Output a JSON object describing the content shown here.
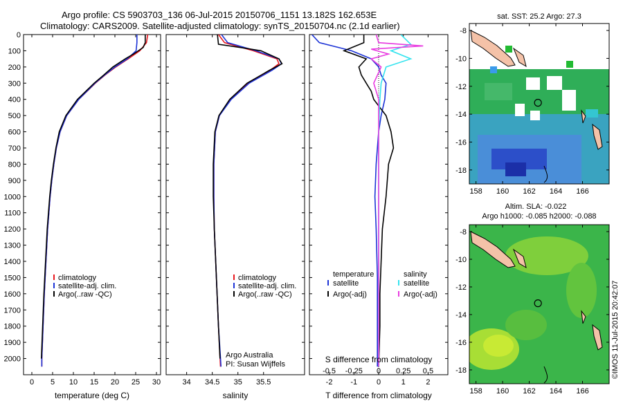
{
  "header": {
    "line1": "Argo profile: CS 5903703_136 06-Jul-2015 20150706_1151 13.182S 162.653E",
    "line2": "Climatology: CARS2009. Satellite-adjusted climatology: synTS_20150704.nc (2.1d earlier)"
  },
  "colors": {
    "climatology": "#e8161d",
    "satellite": "#1c33d6",
    "argo": "#000000",
    "sal_sat": "#33e3ee",
    "sal_argo": "#e83be0"
  },
  "panels": {
    "temperature": {
      "xlabel": "temperature (deg C)",
      "legend": [
        "climatology",
        "satellite-adj. clim.",
        "Argo(..raw -QC)"
      ]
    },
    "salinity": {
      "xlabel": "salinity",
      "legend": [
        "climatology",
        "satellite-adj. clim.",
        "Argo(..raw -QC)"
      ],
      "credit1": "Argo Australia",
      "credit2": "PI: Susan Wijffels"
    },
    "difference": {
      "xlabel": "T difference from climatology",
      "top_label": "S difference from climatology",
      "legend_head_left": "temperature",
      "legend_head_right": "salinity",
      "legend_left": [
        "satellite",
        "Argo(-adj)"
      ],
      "legend_right": [
        "satellite",
        "Argo(-adj)"
      ]
    },
    "map_sst": {
      "title": "sat. SST: 25.2  Argo: 27.3"
    },
    "map_sla": {
      "title1": "Altim. SLA: -0.022",
      "title2": "Argo h1000: -0.085 h2000: -0.088"
    }
  },
  "side_label": "©IMOS 11-Jul-2015 20:42:07",
  "chart_data": [
    {
      "type": "line",
      "id": "temperature",
      "xlabel": "temperature (deg C)",
      "xlim": [
        -2,
        31
      ],
      "ylim": [
        0,
        2100
      ],
      "xticks": [
        0,
        5,
        10,
        15,
        20,
        25,
        30
      ],
      "yticks": [
        0,
        100,
        200,
        300,
        400,
        500,
        600,
        700,
        800,
        900,
        1000,
        1100,
        1200,
        1300,
        1400,
        1500,
        1600,
        1700,
        1800,
        1900,
        2000
      ],
      "series": [
        {
          "name": "climatology",
          "depth": [
            0,
            50,
            100,
            150,
            200,
            250,
            300,
            400,
            500,
            600,
            700,
            800,
            900,
            1000,
            1200,
            1400,
            1600,
            1800,
            2000,
            2050
          ],
          "values": [
            27.9,
            27.6,
            26.0,
            23.2,
            20.2,
            17.6,
            15.3,
            11.3,
            8.4,
            6.8,
            5.9,
            5.3,
            4.8,
            4.4,
            3.8,
            3.4,
            3.0,
            2.7,
            2.4,
            2.4
          ]
        },
        {
          "name": "satellite-adj. clim.",
          "depth": [
            0,
            50,
            100,
            150,
            200,
            250,
            300,
            400,
            500,
            600,
            700,
            800,
            900,
            1000,
            1200,
            1400,
            1600,
            1800,
            2000,
            2050
          ],
          "values": [
            25.3,
            25.3,
            25.1,
            23.0,
            20.0,
            17.5,
            15.2,
            11.3,
            8.4,
            6.8,
            5.9,
            5.3,
            4.8,
            4.4,
            3.8,
            3.4,
            3.0,
            2.7,
            2.4,
            2.4
          ]
        },
        {
          "name": "Argo(..raw -QC)",
          "depth": [
            0,
            50,
            80,
            120,
            150,
            200,
            250,
            300,
            400,
            500,
            600,
            700,
            800,
            900,
            1000,
            1200,
            1400,
            1600,
            1800,
            2000
          ],
          "values": [
            27.3,
            27.3,
            26.8,
            24.5,
            22.5,
            19.5,
            17.3,
            15.0,
            11.0,
            8.2,
            6.6,
            5.8,
            5.2,
            4.7,
            4.3,
            3.7,
            3.3,
            2.9,
            2.6,
            2.3
          ]
        }
      ]
    },
    {
      "type": "line",
      "id": "salinity",
      "xlabel": "salinity",
      "xlim": [
        33.6,
        36.3
      ],
      "ylim": [
        0,
        2100
      ],
      "xticks": [
        34,
        34.5,
        35,
        35.5
      ],
      "series": [
        {
          "name": "climatology",
          "depth": [
            0,
            50,
            100,
            150,
            180,
            220,
            300,
            400,
            500,
            600,
            800,
            1000,
            1200,
            1500,
            1800,
            2050
          ],
          "values": [
            34.62,
            34.74,
            35.3,
            35.76,
            35.8,
            35.63,
            35.2,
            34.86,
            34.64,
            34.56,
            34.53,
            34.53,
            34.54,
            34.58,
            34.62,
            34.66
          ]
        },
        {
          "name": "satellite-adj. clim.",
          "depth": [
            0,
            50,
            100,
            150,
            180,
            220,
            300,
            400,
            500,
            600,
            800,
            1000,
            1200,
            1500,
            1800,
            2050
          ],
          "values": [
            34.68,
            34.8,
            35.35,
            35.8,
            35.85,
            35.67,
            35.22,
            34.87,
            34.64,
            34.56,
            34.53,
            34.53,
            34.54,
            34.58,
            34.62,
            34.67
          ]
        },
        {
          "name": "Argo(..raw -QC)",
          "depth": [
            0,
            60,
            80,
            100,
            150,
            180,
            220,
            300,
            400,
            500,
            600,
            800,
            1000,
            1200,
            1500,
            1800,
            2000
          ],
          "values": [
            34.6,
            34.62,
            35.05,
            35.45,
            35.8,
            35.86,
            35.62,
            35.18,
            34.84,
            34.63,
            34.55,
            34.52,
            34.52,
            34.54,
            34.58,
            34.62,
            34.65
          ]
        }
      ]
    },
    {
      "type": "line",
      "id": "difference",
      "xlabel": "T difference from climatology",
      "xlim": [
        -2.8,
        2.8
      ],
      "ylim": [
        0,
        2100
      ],
      "xticks": [
        -2,
        -1,
        0,
        1,
        2
      ],
      "top_xticks": [
        "-0.5",
        "-0.25",
        "0",
        "0.25",
        "0.5"
      ],
      "series": [
        {
          "name": "temperature satellite",
          "depth": [
            0,
            50,
            100,
            150,
            200,
            250,
            300,
            400,
            500,
            600,
            800,
            1000,
            1200,
            1500,
            1800,
            2050
          ],
          "values": [
            -2.7,
            -2.4,
            -1.1,
            -0.3,
            0.0,
            0.1,
            0.3,
            0.25,
            0.1,
            0.0,
            -0.1,
            -0.15,
            -0.1,
            -0.05,
            -0.05,
            -0.05
          ]
        },
        {
          "name": "temperature Argo(-adj)",
          "depth": [
            0,
            50,
            100,
            150,
            200,
            250,
            300,
            350,
            400,
            500,
            600,
            700,
            800,
            900,
            1000,
            1200,
            1400,
            1600,
            1800,
            2050
          ],
          "values": [
            -0.6,
            -0.6,
            -1.4,
            -0.5,
            -0.8,
            -0.7,
            -0.5,
            -0.3,
            -0.2,
            0.3,
            0.5,
            0.6,
            0.4,
            0.35,
            0.3,
            0.15,
            0.1,
            0.05,
            0.05,
            0.0
          ]
        },
        {
          "name": "salinity satellite",
          "depth": [
            0,
            60,
            100,
            150,
            200,
            300,
            400,
            600,
            800,
            1000,
            1500,
            2050
          ],
          "values": [
            0.9,
            1.3,
            0.5,
            1.3,
            0.3,
            0.1,
            0.05,
            0.0,
            0.0,
            0.0,
            0.0,
            0.0
          ]
        },
        {
          "name": "salinity Argo(-adj)",
          "depth": [
            0,
            50,
            70,
            90,
            120,
            150,
            200,
            300,
            400,
            600,
            1000,
            2050
          ],
          "values": [
            -0.1,
            0.0,
            1.8,
            -0.3,
            0.4,
            -0.3,
            0.1,
            -0.2,
            0.0,
            0.0,
            0.0,
            0.0
          ]
        }
      ]
    },
    {
      "type": "heatmap",
      "id": "map_sst",
      "xlim": [
        157.5,
        168
      ],
      "ylim": [
        -19,
        -7.5
      ],
      "xticks": [
        158,
        160,
        162,
        164,
        166
      ],
      "yticks": [
        -8,
        -10,
        -12,
        -14,
        -16,
        -18
      ],
      "profile_location": [
        162.653,
        -13.182
      ]
    },
    {
      "type": "heatmap",
      "id": "map_sla",
      "xlim": [
        157.5,
        168
      ],
      "ylim": [
        -19,
        -7.5
      ],
      "xticks": [
        158,
        160,
        162,
        164,
        166
      ],
      "yticks": [
        -8,
        -10,
        -12,
        -14,
        -16,
        -18
      ],
      "profile_location": [
        162.653,
        -13.182
      ]
    }
  ]
}
